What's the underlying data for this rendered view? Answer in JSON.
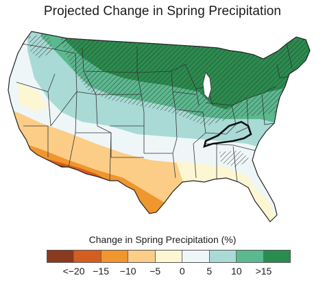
{
  "title": "Projected Change in Spring Precipitation",
  "legend": {
    "title": "Change in Spring Precipitation (%)",
    "colors": [
      "#8b3a1e",
      "#d35e1f",
      "#f0962e",
      "#fbcd86",
      "#fdf6d3",
      "#eef6f8",
      "#a9dad6",
      "#5bb98f",
      "#2a8c4e"
    ],
    "tick_labels": [
      "<−20",
      "−15",
      "−10",
      "−5",
      "0",
      "5",
      "10",
      ">15"
    ]
  },
  "map_colors": {
    "land_base": "#eef6f8",
    "outline": "#222222",
    "state_lines": "#333333",
    "hatch": "#333333",
    "kentucky_outline": "#111111"
  }
}
